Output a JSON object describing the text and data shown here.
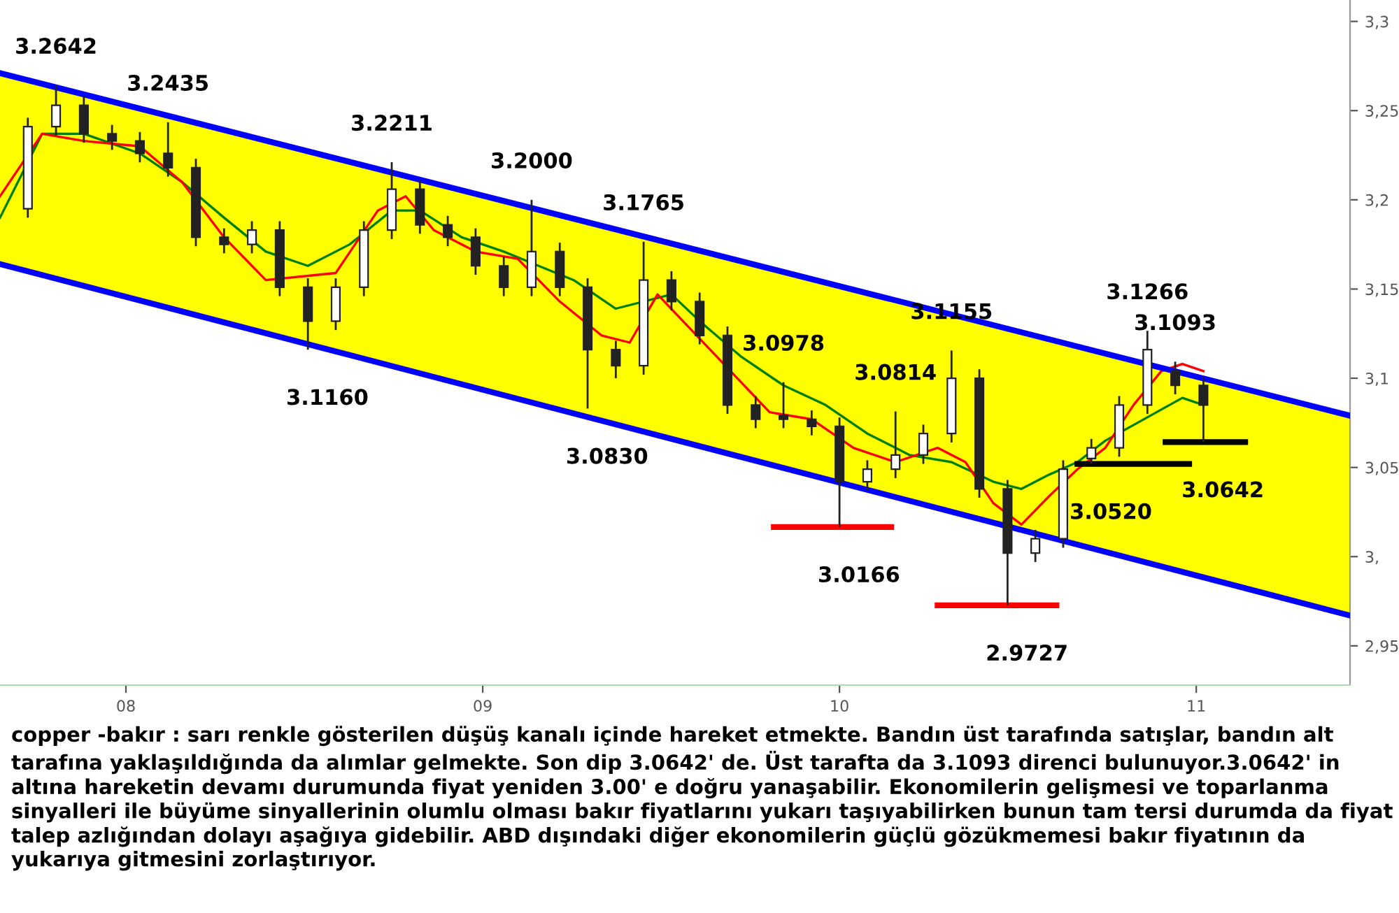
{
  "chart_data": {
    "type": "candlestick",
    "x": [
      7.725,
      7.804,
      7.882,
      7.961,
      8.039,
      8.118,
      8.196,
      8.275,
      8.353,
      8.431,
      8.51,
      8.588,
      8.667,
      8.745,
      8.824,
      8.902,
      8.98,
      9.059,
      9.137,
      9.216,
      9.294,
      9.373,
      9.451,
      9.529,
      9.608,
      9.686,
      9.765,
      9.843,
      9.922,
      10.0,
      10.078,
      10.157,
      10.235,
      10.314,
      10.392,
      10.471,
      10.549,
      10.627,
      10.706,
      10.784,
      10.863,
      10.941,
      11.02
    ],
    "ohlc": [
      [
        3.195,
        3.246,
        3.19,
        3.241
      ],
      [
        3.241,
        3.2642,
        3.236,
        3.253
      ],
      [
        3.253,
        3.258,
        3.232,
        3.237
      ],
      [
        3.237,
        3.242,
        3.228,
        3.233
      ],
      [
        3.233,
        3.238,
        3.221,
        3.226
      ],
      [
        3.226,
        3.2435,
        3.213,
        3.218
      ],
      [
        3.218,
        3.223,
        3.174,
        3.179
      ],
      [
        3.179,
        3.184,
        3.17,
        3.175
      ],
      [
        3.175,
        3.188,
        3.17,
        3.183
      ],
      [
        3.183,
        3.188,
        3.146,
        3.151
      ],
      [
        3.151,
        3.156,
        3.116,
        3.132
      ],
      [
        3.132,
        3.156,
        3.127,
        3.151
      ],
      [
        3.151,
        3.188,
        3.146,
        3.183
      ],
      [
        3.183,
        3.2211,
        3.178,
        3.206
      ],
      [
        3.206,
        3.211,
        3.181,
        3.186
      ],
      [
        3.186,
        3.191,
        3.174,
        3.179
      ],
      [
        3.179,
        3.184,
        3.158,
        3.163
      ],
      [
        3.163,
        3.168,
        3.146,
        3.151
      ],
      [
        3.151,
        3.2,
        3.146,
        3.171
      ],
      [
        3.171,
        3.176,
        3.146,
        3.151
      ],
      [
        3.151,
        3.156,
        3.083,
        3.116
      ],
      [
        3.116,
        3.121,
        3.1,
        3.107
      ],
      [
        3.107,
        3.1765,
        3.102,
        3.155
      ],
      [
        3.155,
        3.16,
        3.138,
        3.143
      ],
      [
        3.143,
        3.148,
        3.119,
        3.124
      ],
      [
        3.124,
        3.129,
        3.08,
        3.085
      ],
      [
        3.085,
        3.09,
        3.072,
        3.077
      ],
      [
        3.079,
        3.0978,
        3.072,
        3.077
      ],
      [
        3.077,
        3.082,
        3.068,
        3.073
      ],
      [
        3.073,
        3.078,
        3.0166,
        3.042
      ],
      [
        3.042,
        3.054,
        3.037,
        3.049
      ],
      [
        3.049,
        3.0814,
        3.044,
        3.057
      ],
      [
        3.057,
        3.074,
        3.052,
        3.069
      ],
      [
        3.069,
        3.1155,
        3.064,
        3.1
      ],
      [
        3.1,
        3.105,
        3.033,
        3.038
      ],
      [
        3.038,
        3.043,
        2.9727,
        3.002
      ],
      [
        3.002,
        3.015,
        2.997,
        3.01
      ],
      [
        3.01,
        3.054,
        3.005,
        3.049
      ],
      [
        3.055,
        3.066,
        3.052,
        3.061
      ],
      [
        3.061,
        3.09,
        3.056,
        3.085
      ],
      [
        3.085,
        3.1266,
        3.08,
        3.116
      ],
      [
        3.104,
        3.1093,
        3.091,
        3.096
      ],
      [
        3.096,
        3.101,
        3.0642,
        3.085
      ]
    ],
    "series": [
      {
        "type": "line",
        "color": "#0000ff",
        "x": [
          7.647,
          11.431
        ],
        "values": [
          3.271,
          3.079
        ],
        "lower": [
          3.164,
          2.967
        ],
        "upper": [
          3.271,
          3.079
        ]
      },
      {
        "type": "line",
        "color": "#0000ff",
        "x": [
          7.647,
          11.431
        ],
        "values": [
          3.164,
          2.967
        ]
      },
      {
        "type": "line",
        "color": "#008000",
        "x": [
          7.647,
          7.765,
          7.882,
          8.039,
          8.157,
          8.275,
          8.392,
          8.51,
          8.627,
          8.745,
          8.824,
          8.941,
          9.059,
          9.255,
          9.373,
          9.529,
          9.608,
          9.725,
          9.843,
          9.961,
          10.078,
          10.196,
          10.314,
          10.431,
          10.51,
          10.588,
          10.667,
          10.745,
          10.961,
          11.02
        ],
        "values": [
          3.19,
          3.237,
          3.237,
          3.226,
          3.21,
          3.19,
          3.171,
          3.163,
          3.175,
          3.194,
          3.194,
          3.179,
          3.171,
          3.155,
          3.139,
          3.147,
          3.132,
          3.112,
          3.096,
          3.085,
          3.069,
          3.057,
          3.053,
          3.042,
          3.038,
          3.046,
          3.053,
          3.065,
          3.089,
          3.085
        ]
      },
      {
        "type": "line",
        "color": "#ff0000",
        "x": [
          7.647,
          7.765,
          7.882,
          8.039,
          8.157,
          8.275,
          8.392,
          8.588,
          8.706,
          8.784,
          8.863,
          8.98,
          9.098,
          9.216,
          9.333,
          9.412,
          9.49,
          9.804,
          9.922,
          10.039,
          10.157,
          10.275,
          10.353,
          10.431,
          10.51,
          10.588,
          10.667,
          10.745,
          10.824,
          10.902,
          10.961,
          11.02
        ],
        "values": [
          3.202,
          3.237,
          3.233,
          3.23,
          3.21,
          3.179,
          3.155,
          3.159,
          3.194,
          3.202,
          3.183,
          3.171,
          3.167,
          3.143,
          3.124,
          3.12,
          3.147,
          3.081,
          3.077,
          3.061,
          3.053,
          3.061,
          3.053,
          3.03,
          3.018,
          3.034,
          3.049,
          3.061,
          3.085,
          3.104,
          3.108,
          3.104
        ]
      },
      {
        "type": "line",
        "color": "#ff0000",
        "x": [
          9.816,
          10.145
        ],
        "values": [
          3.0166,
          3.0166
        ]
      },
      {
        "type": "line",
        "color": "#ff0000",
        "x": [
          10.275,
          10.608
        ],
        "values": [
          2.9727,
          2.9727
        ]
      },
      {
        "type": "line",
        "color": "#000000",
        "x": [
          10.667,
          10.98
        ],
        "values": [
          3.052,
          3.052
        ]
      },
      {
        "type": "line",
        "color": "#000000",
        "x": [
          10.914,
          11.137
        ],
        "values": [
          3.0642,
          3.0642
        ]
      }
    ],
    "xlim": [
      7.647,
      11.431
    ],
    "ylim": [
      2.928,
      3.312
    ],
    "xticks": [
      {
        "value": 8,
        "label": "08"
      },
      {
        "value": 9,
        "label": "09"
      },
      {
        "value": 10,
        "label": "10"
      },
      {
        "value": 11,
        "label": "11"
      }
    ],
    "yticks": [
      {
        "value": 2.95,
        "label": "2,95"
      },
      {
        "value": 3.0,
        "label": "3,"
      },
      {
        "value": 3.05,
        "label": "3,05"
      },
      {
        "value": 3.1,
        "label": "3,1"
      },
      {
        "value": 3.15,
        "label": "3,15"
      },
      {
        "value": 3.2,
        "label": "3,2"
      },
      {
        "value": 3.25,
        "label": "3,25"
      },
      {
        "value": 3.3,
        "label": "3,3"
      }
    ],
    "grid": false,
    "legend": false,
    "annotations": [
      {
        "text": "3.2642",
        "x": 7.804,
        "y": 3.2642
      },
      {
        "text": "3.2435",
        "x": 8.118,
        "y": 3.2435
      },
      {
        "text": "3.1160",
        "x": 8.51,
        "y": 3.116
      },
      {
        "text": "3.2211",
        "x": 8.745,
        "y": 3.2211
      },
      {
        "text": "3.2000",
        "x": 9.137,
        "y": 3.2
      },
      {
        "text": "3.0830",
        "x": 9.294,
        "y": 3.083
      },
      {
        "text": "3.1765",
        "x": 9.451,
        "y": 3.1765
      },
      {
        "text": "3.0978",
        "x": 9.843,
        "y": 3.0978
      },
      {
        "text": "3.0166",
        "x": 10.0,
        "y": 3.0166
      },
      {
        "text": "3.0814",
        "x": 10.157,
        "y": 3.0814
      },
      {
        "text": "3.1155",
        "x": 10.314,
        "y": 3.1155
      },
      {
        "text": "2.9727",
        "x": 10.471,
        "y": 2.9727
      },
      {
        "text": "3.0520",
        "x": 10.706,
        "y": 3.052
      },
      {
        "text": "3.1266",
        "x": 10.863,
        "y": 3.1266
      },
      {
        "text": "3.1093",
        "x": 10.941,
        "y": 3.1093
      },
      {
        "text": "3.0642",
        "x": 11.02,
        "y": 3.0642
      },
      "copper -bakır : sarı renkle gösterilen düşüş kanalı içinde hareket etmekte. Bandın üst tarafında satışlar, bandın alt tarafına yaklaşıldığında da alımlar gelmekte. Son dip 3.0642' de. Üst tarafta da 3.1093 direnci bulunuyor.3.0642' in altına hareketin devamı durumunda fiyat yeniden 3.00' e doğru yanaşabilir. Ekonomilerin gelişmesi ve toparlanma sinyalleri ile büyüme sinyallerinin olumlu olması bakır fiyatlarını yukarı taşıyabilirken bunun tam tersi durumda da fiyat talep azlığından dolayı aşağıya gidebilir. ABD dışındaki diğer ekonomilerin güçlü gözükmemesi bakır fiyatının da yukarıya gitmesini zorlaştırıyor."
    ]
  }
}
